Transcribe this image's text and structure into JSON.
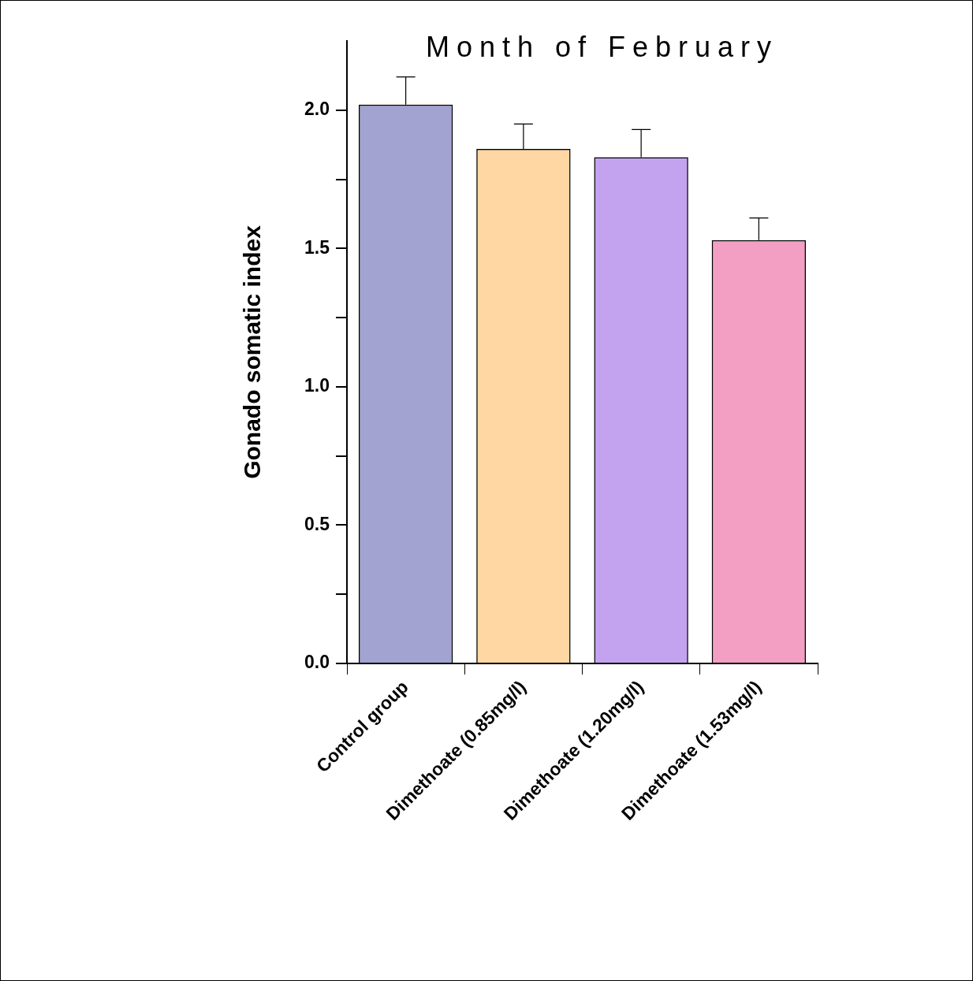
{
  "chart_data": {
    "type": "bar",
    "title": "Month of February",
    "ylabel": "Gonado somatic index",
    "categories": [
      "Control group",
      "Dimethoate (0.85mg/l)",
      "Dimethoate (1.20mg/l)",
      "Dimethoate (1.53mg/l)"
    ],
    "values": [
      2.02,
      1.86,
      1.83,
      1.53
    ],
    "colors": [
      "#1a1a8c",
      "#ff9a1a",
      "#6a1ad8",
      "#e0106a"
    ],
    "errors": [
      [
        2.02,
        2.12
      ],
      [
        1.86,
        1.95
      ],
      [
        1.83,
        1.93
      ],
      [
        1.53,
        1.61
      ]
    ],
    "ylim": [
      0,
      2.25
    ],
    "yticks": [
      {
        "value": 0,
        "label": "0.0"
      },
      {
        "value": 0.25,
        "label": null
      },
      {
        "value": 0.5,
        "label": "0.5"
      },
      {
        "value": 0.75,
        "label": null
      },
      {
        "value": 1,
        "label": "1.0"
      },
      {
        "value": 1.25,
        "label": null
      },
      {
        "value": 1.5,
        "label": "1.5"
      },
      {
        "value": 1.75,
        "label": null
      },
      {
        "value": 2,
        "label": "2.0"
      }
    ],
    "grid": false,
    "legend": false
  }
}
